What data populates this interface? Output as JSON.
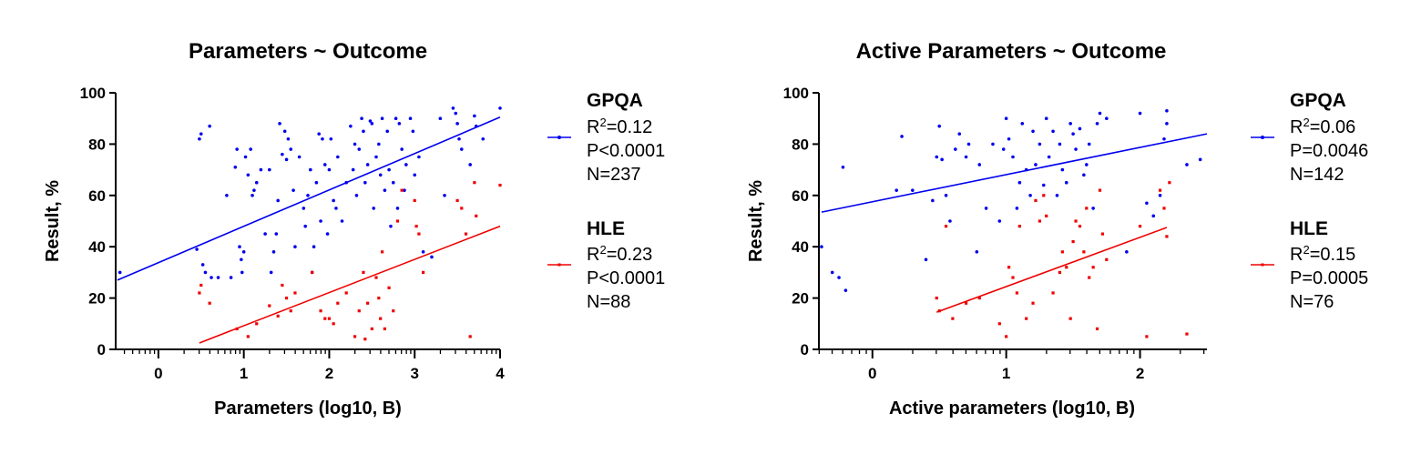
{
  "chart_data": [
    {
      "type": "scatter",
      "title": "Parameters ~ Outcome",
      "xlabel": "Parameters (log10, B)",
      "ylabel": "Result, %",
      "xlim": [
        -0.5,
        4
      ],
      "ylim": [
        0,
        100
      ],
      "x_major_ticks": [
        0,
        1,
        2,
        3,
        4
      ],
      "y_ticks": [
        0,
        20,
        40,
        60,
        80,
        100
      ],
      "x_minor": "log",
      "legend_position": "right",
      "series": [
        {
          "name": "GPQA",
          "color": "#0000ee",
          "stats": {
            "r2": "R",
            "r2_sup": "2",
            "r2_val": "=0.12",
            "p": "P<0.0001",
            "n": "N=237"
          },
          "fit": [
            [
              -0.48,
              27
            ],
            [
              4.0,
              90.5
            ]
          ],
          "points": [
            [
              -0.45,
              30
            ],
            [
              0.45,
              39
            ],
            [
              0.48,
              82
            ],
            [
              0.5,
              84
            ],
            [
              0.52,
              33
            ],
            [
              0.55,
              30
            ],
            [
              0.6,
              87
            ],
            [
              0.62,
              28
            ],
            [
              0.7,
              28
            ],
            [
              0.8,
              60
            ],
            [
              0.85,
              28
            ],
            [
              0.9,
              71
            ],
            [
              0.92,
              78
            ],
            [
              0.95,
              40
            ],
            [
              0.97,
              35
            ],
            [
              0.98,
              30
            ],
            [
              1.0,
              38
            ],
            [
              1.02,
              75
            ],
            [
              1.05,
              68
            ],
            [
              1.08,
              78
            ],
            [
              1.1,
              60
            ],
            [
              1.12,
              62
            ],
            [
              1.15,
              65
            ],
            [
              1.2,
              70
            ],
            [
              1.25,
              45
            ],
            [
              1.3,
              70
            ],
            [
              1.32,
              30
            ],
            [
              1.35,
              38
            ],
            [
              1.38,
              45
            ],
            [
              1.4,
              58
            ],
            [
              1.42,
              88
            ],
            [
              1.45,
              76
            ],
            [
              1.48,
              85
            ],
            [
              1.5,
              74
            ],
            [
              1.52,
              82
            ],
            [
              1.55,
              78
            ],
            [
              1.58,
              62
            ],
            [
              1.6,
              40
            ],
            [
              1.65,
              75
            ],
            [
              1.7,
              55
            ],
            [
              1.72,
              48
            ],
            [
              1.75,
              60
            ],
            [
              1.78,
              70
            ],
            [
              1.8,
              30
            ],
            [
              1.82,
              40
            ],
            [
              1.85,
              65
            ],
            [
              1.88,
              84
            ],
            [
              1.9,
              50
            ],
            [
              1.92,
              82
            ],
            [
              1.95,
              72
            ],
            [
              1.98,
              45
            ],
            [
              2.0,
              70
            ],
            [
              2.02,
              82
            ],
            [
              2.05,
              58
            ],
            [
              2.08,
              55
            ],
            [
              2.1,
              75
            ],
            [
              2.15,
              50
            ],
            [
              2.2,
              65
            ],
            [
              2.25,
              87
            ],
            [
              2.28,
              70
            ],
            [
              2.3,
              80
            ],
            [
              2.32,
              60
            ],
            [
              2.35,
              78
            ],
            [
              2.38,
              90
            ],
            [
              2.4,
              85
            ],
            [
              2.42,
              65
            ],
            [
              2.45,
              72
            ],
            [
              2.48,
              89
            ],
            [
              2.5,
              88
            ],
            [
              2.52,
              55
            ],
            [
              2.55,
              75
            ],
            [
              2.58,
              80
            ],
            [
              2.6,
              68
            ],
            [
              2.62,
              90
            ],
            [
              2.65,
              62
            ],
            [
              2.68,
              85
            ],
            [
              2.7,
              70
            ],
            [
              2.72,
              48
            ],
            [
              2.75,
              65
            ],
            [
              2.78,
              90
            ],
            [
              2.8,
              55
            ],
            [
              2.82,
              88
            ],
            [
              2.85,
              78
            ],
            [
              2.88,
              62
            ],
            [
              2.9,
              72
            ],
            [
              2.95,
              90
            ],
            [
              2.98,
              85
            ],
            [
              3.0,
              68
            ],
            [
              3.05,
              75
            ],
            [
              3.1,
              38
            ],
            [
              3.2,
              36
            ],
            [
              3.3,
              90
            ],
            [
              3.35,
              60
            ],
            [
              3.45,
              94
            ],
            [
              3.48,
              92
            ],
            [
              3.5,
              88
            ],
            [
              3.52,
              82
            ],
            [
              3.55,
              78
            ],
            [
              3.65,
              72
            ],
            [
              3.7,
              91
            ],
            [
              3.72,
              87
            ],
            [
              3.8,
              82
            ],
            [
              4.0,
              94
            ]
          ]
        },
        {
          "name": "HLE",
          "color": "#ee0000",
          "stats": {
            "r2": "R",
            "r2_sup": "2",
            "r2_val": "=0.23",
            "p": "P<0.0001",
            "n": "N=88"
          },
          "fit": [
            [
              0.48,
              2.5
            ],
            [
              4.0,
              48
            ]
          ],
          "points": [
            [
              0.48,
              22
            ],
            [
              0.5,
              25
            ],
            [
              0.6,
              18
            ],
            [
              0.92,
              8
            ],
            [
              1.05,
              5
            ],
            [
              1.15,
              10
            ],
            [
              1.3,
              17
            ],
            [
              1.4,
              13
            ],
            [
              1.45,
              25
            ],
            [
              1.5,
              20
            ],
            [
              1.55,
              15
            ],
            [
              1.6,
              22
            ],
            [
              1.8,
              30
            ],
            [
              1.9,
              15
            ],
            [
              1.95,
              12
            ],
            [
              2.0,
              12
            ],
            [
              2.05,
              10
            ],
            [
              2.1,
              18
            ],
            [
              2.2,
              22
            ],
            [
              2.3,
              5
            ],
            [
              2.35,
              15
            ],
            [
              2.4,
              30
            ],
            [
              2.42,
              4
            ],
            [
              2.45,
              18
            ],
            [
              2.5,
              8
            ],
            [
              2.55,
              28
            ],
            [
              2.58,
              20
            ],
            [
              2.6,
              12
            ],
            [
              2.62,
              38
            ],
            [
              2.65,
              8
            ],
            [
              2.7,
              24
            ],
            [
              2.75,
              15
            ],
            [
              2.8,
              50
            ],
            [
              2.85,
              62
            ],
            [
              3.0,
              58
            ],
            [
              3.02,
              48
            ],
            [
              3.05,
              45
            ],
            [
              3.1,
              30
            ],
            [
              3.5,
              58
            ],
            [
              3.55,
              55
            ],
            [
              3.6,
              45
            ],
            [
              3.65,
              5
            ],
            [
              3.7,
              65
            ],
            [
              3.72,
              52
            ],
            [
              4.0,
              64
            ]
          ]
        }
      ]
    },
    {
      "type": "scatter",
      "title": "Active Parameters ~ Outcome",
      "xlabel": "Active parameters (log10, B)",
      "ylabel": "Result, %",
      "xlim": [
        -0.4,
        2.5
      ],
      "ylim": [
        0,
        100
      ],
      "x_major_ticks": [
        0,
        1,
        2
      ],
      "y_ticks": [
        0,
        20,
        40,
        60,
        80,
        100
      ],
      "x_minor": "log",
      "legend_position": "right",
      "series": [
        {
          "name": "GPQA",
          "color": "#0000ee",
          "stats": {
            "r2": "R",
            "r2_sup": "2",
            "r2_val": "=0.06",
            "p": "P=0.0046",
            "n": "N=142"
          },
          "fit": [
            [
              -0.38,
              53.5
            ],
            [
              2.5,
              84
            ]
          ],
          "points": [
            [
              -0.38,
              40
            ],
            [
              -0.3,
              30
            ],
            [
              -0.25,
              28
            ],
            [
              -0.22,
              71
            ],
            [
              -0.2,
              23
            ],
            [
              0.18,
              62
            ],
            [
              0.22,
              83
            ],
            [
              0.3,
              62
            ],
            [
              0.4,
              35
            ],
            [
              0.45,
              58
            ],
            [
              0.48,
              75
            ],
            [
              0.5,
              87
            ],
            [
              0.52,
              74
            ],
            [
              0.55,
              60
            ],
            [
              0.58,
              50
            ],
            [
              0.62,
              78
            ],
            [
              0.65,
              84
            ],
            [
              0.7,
              75
            ],
            [
              0.72,
              80
            ],
            [
              0.78,
              38
            ],
            [
              0.8,
              72
            ],
            [
              0.85,
              55
            ],
            [
              0.9,
              80
            ],
            [
              0.95,
              50
            ],
            [
              0.98,
              78
            ],
            [
              1.0,
              90
            ],
            [
              1.02,
              82
            ],
            [
              1.05,
              75
            ],
            [
              1.08,
              55
            ],
            [
              1.1,
              65
            ],
            [
              1.12,
              88
            ],
            [
              1.15,
              70
            ],
            [
              1.18,
              60
            ],
            [
              1.2,
              85
            ],
            [
              1.22,
              72
            ],
            [
              1.25,
              80
            ],
            [
              1.28,
              64
            ],
            [
              1.3,
              90
            ],
            [
              1.32,
              75
            ],
            [
              1.35,
              85
            ],
            [
              1.38,
              60
            ],
            [
              1.4,
              80
            ],
            [
              1.42,
              70
            ],
            [
              1.45,
              65
            ],
            [
              1.48,
              88
            ],
            [
              1.5,
              84
            ],
            [
              1.52,
              78
            ],
            [
              1.55,
              86
            ],
            [
              1.58,
              68
            ],
            [
              1.6,
              72
            ],
            [
              1.62,
              80
            ],
            [
              1.65,
              55
            ],
            [
              1.68,
              88
            ],
            [
              1.7,
              92
            ],
            [
              1.75,
              90
            ],
            [
              1.9,
              38
            ],
            [
              2.0,
              92
            ],
            [
              2.05,
              57
            ],
            [
              2.1,
              52
            ],
            [
              2.15,
              60
            ],
            [
              2.18,
              82
            ],
            [
              2.2,
              88
            ],
            [
              2.2,
              93
            ],
            [
              2.35,
              72
            ],
            [
              2.45,
              74
            ]
          ]
        },
        {
          "name": "HLE",
          "color": "#ee0000",
          "stats": {
            "r2": "R",
            "r2_sup": "2",
            "r2_val": "=0.15",
            "p": "P=0.0005",
            "n": "N=76"
          },
          "fit": [
            [
              0.48,
              14.5
            ],
            [
              2.2,
              47.5
            ]
          ],
          "points": [
            [
              0.48,
              20
            ],
            [
              0.5,
              15
            ],
            [
              0.55,
              48
            ],
            [
              0.6,
              12
            ],
            [
              0.7,
              18
            ],
            [
              0.8,
              20
            ],
            [
              0.95,
              10
            ],
            [
              1.0,
              5
            ],
            [
              1.02,
              32
            ],
            [
              1.05,
              28
            ],
            [
              1.08,
              22
            ],
            [
              1.1,
              48
            ],
            [
              1.15,
              12
            ],
            [
              1.2,
              18
            ],
            [
              1.22,
              58
            ],
            [
              1.25,
              50
            ],
            [
              1.28,
              60
            ],
            [
              1.3,
              52
            ],
            [
              1.35,
              22
            ],
            [
              1.4,
              30
            ],
            [
              1.42,
              38
            ],
            [
              1.45,
              32
            ],
            [
              1.48,
              12
            ],
            [
              1.5,
              42
            ],
            [
              1.52,
              50
            ],
            [
              1.55,
              48
            ],
            [
              1.58,
              38
            ],
            [
              1.6,
              55
            ],
            [
              1.62,
              28
            ],
            [
              1.65,
              32
            ],
            [
              1.68,
              8
            ],
            [
              1.7,
              62
            ],
            [
              1.72,
              45
            ],
            [
              1.75,
              35
            ],
            [
              2.0,
              48
            ],
            [
              2.05,
              5
            ],
            [
              2.15,
              62
            ],
            [
              2.18,
              55
            ],
            [
              2.2,
              44
            ],
            [
              2.22,
              65
            ],
            [
              2.35,
              6
            ]
          ]
        }
      ]
    }
  ]
}
